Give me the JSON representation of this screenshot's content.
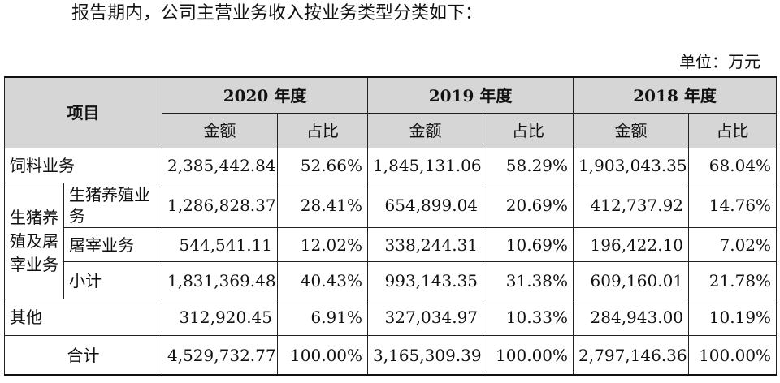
{
  "intro_text": "报告期内，公司主营业务收入按业务类型分类如下：",
  "unit_label": "单位：万元",
  "table": {
    "item_header": "项目",
    "years": [
      "2020 年度",
      "2019 年度",
      "2018 年度"
    ],
    "sub_headers": {
      "amount": "金额",
      "ratio": "占比"
    },
    "rows": [
      {
        "label": "饲料业务",
        "values": [
          "2,385,442.84",
          "52.66%",
          "1,845,131.06",
          "58.29%",
          "1,903,043.35",
          "68.04%"
        ]
      },
      {
        "group": "生猪养殖及屠宰业务",
        "label": "生猪养殖业务",
        "values": [
          "1,286,828.37",
          "28.41%",
          "654,899.04",
          "20.69%",
          "412,737.92",
          "14.76%"
        ]
      },
      {
        "label": "屠宰业务",
        "values": [
          "544,541.11",
          "12.02%",
          "338,244.31",
          "10.69%",
          "196,422.10",
          "7.02%"
        ]
      },
      {
        "label": "小计",
        "values": [
          "1,831,369.48",
          "40.43%",
          "993,143.35",
          "31.38%",
          "609,160.01",
          "21.78%"
        ]
      },
      {
        "label": "其他",
        "values": [
          "312,920.45",
          "6.91%",
          "327,034.97",
          "10.33%",
          "284,943.00",
          "10.19%"
        ]
      }
    ],
    "total": {
      "label": "合计",
      "values": [
        "4,529,732.77",
        "100.00%",
        "3,165,309.39",
        "100.00%",
        "2,797,146.36",
        "100.00%"
      ]
    }
  }
}
